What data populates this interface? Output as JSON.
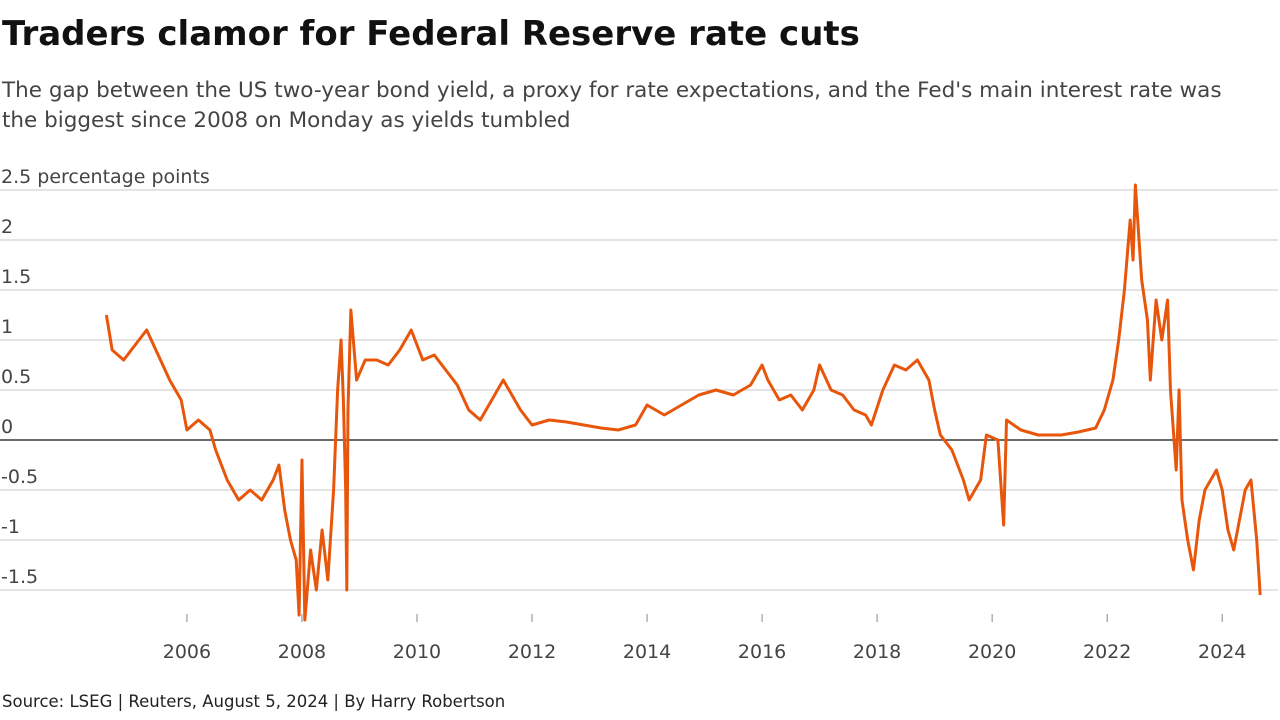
{
  "chart_data": {
    "type": "line",
    "title": "Traders clamor for Federal Reserve rate cuts",
    "subtitle": "The gap between the US two-year bond yield, a proxy for rate expectations, and the Fed's main interest rate was the biggest since 2008 on Monday as yields tumbled",
    "source": "Source: LSEG | Reuters, August 5, 2024 | By Harry Robertson",
    "xlim": [
      2002.75,
      2024.97
    ],
    "xticks": [
      2006,
      2008,
      2010,
      2012,
      2014,
      2016,
      2018,
      2020,
      2022,
      2024
    ],
    "ylim": [
      -1.9,
      2.5
    ],
    "yticks": [
      -1.5,
      -1,
      -0.5,
      0,
      0.5,
      1,
      1.5,
      2,
      {
        "value": 2.5,
        "label": "2.5 percentage points"
      }
    ],
    "grid": true,
    "series": [
      {
        "color": "#e8560c",
        "x": [
          2004.6,
          2004.7,
          2004.9,
          2005.1,
          2005.3,
          2005.5,
          2005.7,
          2005.9,
          2006.0,
          2006.2,
          2006.4,
          2006.5,
          2006.7,
          2006.9,
          2007.1,
          2007.3,
          2007.5,
          2007.6,
          2007.7,
          2007.8,
          2007.9,
          2007.95,
          2008.0,
          2008.05,
          2008.15,
          2008.25,
          2008.35,
          2008.45,
          2008.55,
          2008.62,
          2008.68,
          2008.72,
          2008.76,
          2008.78,
          2008.8,
          2008.85,
          2008.95,
          2009.1,
          2009.3,
          2009.5,
          2009.7,
          2009.9,
          2010.1,
          2010.3,
          2010.5,
          2010.7,
          2010.9,
          2011.1,
          2011.3,
          2011.5,
          2011.6,
          2011.8,
          2012.0,
          2012.3,
          2012.6,
          2012.9,
          2013.2,
          2013.5,
          2013.8,
          2014.0,
          2014.3,
          2014.6,
          2014.9,
          2015.2,
          2015.5,
          2015.8,
          2016.0,
          2016.1,
          2016.3,
          2016.5,
          2016.7,
          2016.9,
          2017.0,
          2017.2,
          2017.4,
          2017.6,
          2017.8,
          2017.9,
          2018.1,
          2018.3,
          2018.5,
          2018.7,
          2018.9,
          2019.0,
          2019.1,
          2019.3,
          2019.5,
          2019.6,
          2019.8,
          2019.9,
          2020.1,
          2020.2,
          2020.25,
          2020.5,
          2020.8,
          2021.2,
          2021.5,
          2021.8,
          2021.95,
          2022.1,
          2022.2,
          2022.3,
          2022.4,
          2022.45,
          2022.49,
          2022.6,
          2022.7,
          2022.75,
          2022.85,
          2022.95,
          2023.05,
          2023.1,
          2023.15,
          2023.2,
          2023.25,
          2023.3,
          2023.4,
          2023.5,
          2023.6,
          2023.7,
          2023.8,
          2023.9,
          2024.0,
          2024.1,
          2024.2,
          2024.3,
          2024.4,
          2024.5,
          2024.6,
          2024.66
        ],
        "values": [
          1.25,
          0.9,
          0.8,
          0.95,
          1.1,
          0.85,
          0.6,
          0.4,
          0.1,
          0.2,
          0.1,
          -0.1,
          -0.4,
          -0.6,
          -0.5,
          -0.6,
          -0.4,
          -0.25,
          -0.7,
          -1.0,
          -1.2,
          -1.75,
          -0.2,
          -1.8,
          -1.1,
          -1.5,
          -0.9,
          -1.4,
          -0.5,
          0.5,
          1.0,
          0.4,
          -0.5,
          -1.5,
          0.3,
          1.3,
          0.6,
          0.8,
          0.8,
          0.75,
          0.9,
          1.1,
          0.8,
          0.85,
          0.7,
          0.55,
          0.3,
          0.2,
          0.4,
          0.6,
          0.5,
          0.3,
          0.15,
          0.2,
          0.18,
          0.15,
          0.12,
          0.1,
          0.15,
          0.35,
          0.25,
          0.35,
          0.45,
          0.5,
          0.45,
          0.55,
          0.75,
          0.6,
          0.4,
          0.45,
          0.3,
          0.5,
          0.75,
          0.5,
          0.45,
          0.3,
          0.25,
          0.15,
          0.5,
          0.75,
          0.7,
          0.8,
          0.6,
          0.3,
          0.05,
          -0.1,
          -0.4,
          -0.6,
          -0.4,
          0.05,
          0.0,
          -0.85,
          0.2,
          0.1,
          0.05,
          0.05,
          0.08,
          0.12,
          0.3,
          0.6,
          1.0,
          1.5,
          2.2,
          1.8,
          2.55,
          1.6,
          1.2,
          0.6,
          1.4,
          1.0,
          1.4,
          0.5,
          0.1,
          -0.3,
          0.5,
          -0.6,
          -1.0,
          -1.3,
          -0.8,
          -0.5,
          -0.4,
          -0.3,
          -0.5,
          -0.9,
          -1.1,
          -0.8,
          -0.5,
          -0.4,
          -1.0,
          -1.55
        ]
      }
    ]
  }
}
